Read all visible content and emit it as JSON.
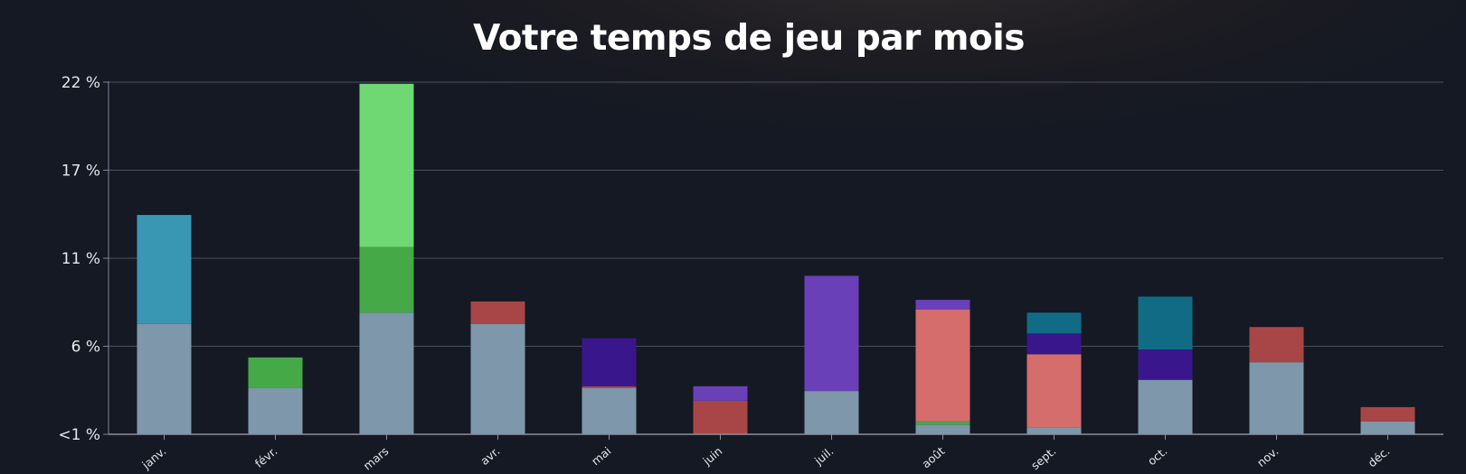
{
  "chart_data": {
    "type": "bar",
    "stacked": true,
    "title": "Votre temps de jeu par mois",
    "xlabel": "",
    "ylabel": "",
    "y_ticks": [
      "<1 %",
      "6 %",
      "11 %",
      "17 %",
      "22 %"
    ],
    "ylim": [
      0,
      22
    ],
    "grid": true,
    "categories": [
      "janv.",
      "févr.",
      "mars",
      "avr.",
      "mai",
      "juin",
      "juil.",
      "août",
      "sept.",
      "oct.",
      "nov.",
      "déc."
    ],
    "series": [
      {
        "color": "#7e97aa",
        "values": [
          6.9,
          2.9,
          7.6,
          6.9,
          2.9,
          0,
          2.7,
          0.6,
          0.4,
          3.4,
          4.5,
          0.8
        ]
      },
      {
        "color": "#3a97b4",
        "values": [
          6.8,
          0,
          0,
          0,
          0,
          0,
          0,
          0,
          0,
          0,
          0,
          0
        ]
      },
      {
        "color": "#45a947",
        "values": [
          0,
          1.9,
          4.1,
          0,
          0,
          0,
          0,
          0.2,
          0,
          0,
          0,
          0
        ]
      },
      {
        "color": "#6fd873",
        "values": [
          0,
          0,
          10.2,
          0,
          0,
          0,
          0,
          0,
          0,
          0,
          0,
          0
        ]
      },
      {
        "color": "#a84647",
        "values": [
          0,
          0,
          0,
          1.4,
          0.1,
          2.1,
          0,
          0,
          0,
          0,
          2.2,
          0.9
        ]
      },
      {
        "color": "#d46d6c",
        "values": [
          0,
          0,
          0,
          0,
          0,
          0,
          0,
          7.0,
          4.6,
          0,
          0,
          0
        ]
      },
      {
        "color": "#3a168c",
        "values": [
          0,
          0,
          0,
          0,
          3.0,
          0,
          0,
          0,
          1.3,
          1.9,
          0,
          0
        ]
      },
      {
        "color": "#6a40b8",
        "values": [
          0,
          0,
          0,
          0,
          0,
          0.9,
          7.2,
          0.6,
          0,
          0,
          0,
          0
        ]
      },
      {
        "color": "#126b85",
        "values": [
          0,
          0,
          0,
          0,
          0,
          0,
          0,
          0,
          1.3,
          3.3,
          0,
          0
        ]
      }
    ]
  }
}
